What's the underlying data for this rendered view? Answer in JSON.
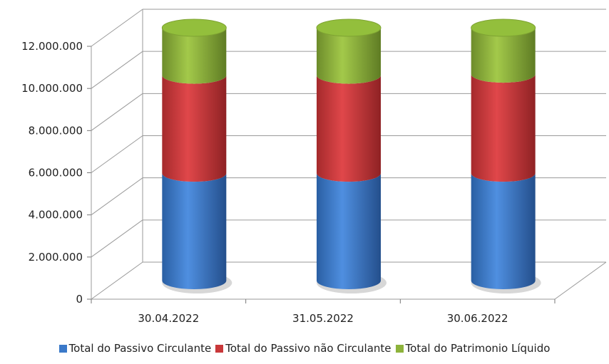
{
  "chart_data": {
    "type": "bar",
    "stacked": true,
    "style": "3d-cylinder",
    "categories": [
      "30.04.2022",
      "31.05.2022",
      "30.06.2022"
    ],
    "series": [
      {
        "name": "Total do Passivo Circulante",
        "values": [
          5100000,
          5100000,
          5100000
        ],
        "color": "#3a79c9"
      },
      {
        "name": "Total do Passivo não Circulante",
        "values": [
          4650000,
          4650000,
          4700000
        ],
        "color": "#c9383a"
      },
      {
        "name": "Total do Patrimonio Líquido",
        "values": [
          2250000,
          2250000,
          2200000
        ],
        "color": "#8db33b"
      }
    ],
    "yticks": [
      "0",
      "2.000.000",
      "4.000.000",
      "6.000.000",
      "8.000.000",
      "10.000.000",
      "12.000.000"
    ],
    "ylim": [
      0,
      12000000
    ],
    "grid": true,
    "legend_position": "bottom"
  }
}
